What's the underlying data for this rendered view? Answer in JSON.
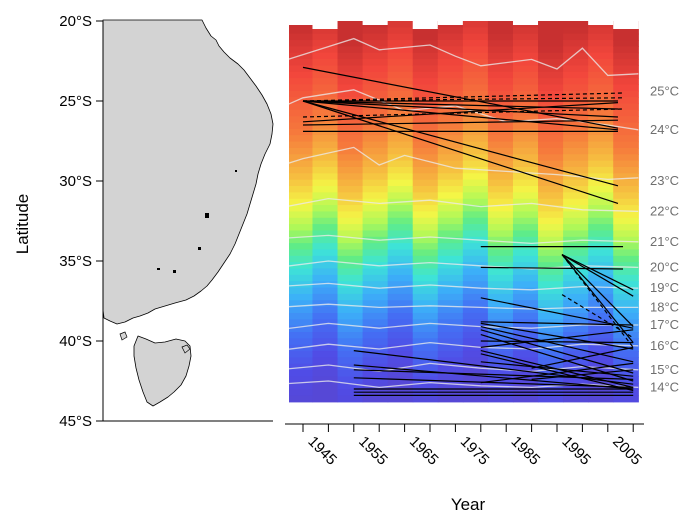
{
  "chart_data": {
    "type": "line",
    "ylabel": "Latitude",
    "xlabel": "Year",
    "y_ticks": [
      "20°S",
      "25°S",
      "30°S",
      "35°S",
      "40°S",
      "45°S"
    ],
    "y_tick_values": [
      20,
      25,
      30,
      35,
      40,
      45
    ],
    "ylim": [
      20,
      45
    ],
    "x_ticks": [
      "1945",
      "1955",
      "1965",
      "1975",
      "1985",
      "1995",
      "2005"
    ],
    "x_tick_values": [
      1945,
      1955,
      1965,
      1975,
      1985,
      1995,
      2005
    ],
    "xlim": [
      1940,
      2011
    ],
    "heatmap_extent": {
      "year_start": 1937,
      "year_end": 2011,
      "lat_top": 20.0,
      "lat_bottom": 43.8
    },
    "color_scale": "temperature: blue (cool, south) to red (warm, north)",
    "isotherms": [
      {
        "label": "25°C",
        "label_lat": 24.4,
        "points": [
          [
            1940,
            22.6
          ],
          [
            1950,
            21.6
          ],
          [
            1955,
            21.1
          ],
          [
            1960,
            21.8
          ],
          [
            1970,
            21.5
          ],
          [
            1975,
            22.2
          ],
          [
            1980,
            22.8
          ],
          [
            1990,
            22.4
          ],
          [
            1995,
            23.0
          ],
          [
            2000,
            21.7
          ],
          [
            2005,
            23.4
          ],
          [
            2011,
            23.3
          ]
        ]
      },
      {
        "label": "24°C",
        "label_lat": 26.8,
        "points": [
          [
            1940,
            25.5
          ],
          [
            1945,
            24.8
          ],
          [
            1955,
            24.3
          ],
          [
            1965,
            25.6
          ],
          [
            1975,
            25.3
          ],
          [
            1985,
            26.3
          ],
          [
            1995,
            26.1
          ],
          [
            2005,
            26.5
          ],
          [
            2011,
            26.8
          ]
        ]
      },
      {
        "label": "23°C",
        "label_lat": 30.0,
        "points": [
          [
            1940,
            29.1
          ],
          [
            1945,
            28.6
          ],
          [
            1955,
            27.9
          ],
          [
            1960,
            29.0
          ],
          [
            1965,
            28.4
          ],
          [
            1975,
            29.2
          ],
          [
            1985,
            29.4
          ],
          [
            1995,
            29.6
          ],
          [
            2005,
            29.9
          ],
          [
            2011,
            29.8
          ]
        ]
      },
      {
        "label": "22°C",
        "label_lat": 31.9,
        "points": [
          [
            1940,
            31.7
          ],
          [
            1950,
            31.1
          ],
          [
            1960,
            31.4
          ],
          [
            1970,
            31.2
          ],
          [
            1980,
            31.6
          ],
          [
            1990,
            31.4
          ],
          [
            2000,
            31.8
          ],
          [
            2011,
            31.9
          ]
        ]
      },
      {
        "label": "21°C",
        "label_lat": 33.8,
        "points": [
          [
            1940,
            33.6
          ],
          [
            1950,
            33.4
          ],
          [
            1960,
            33.7
          ],
          [
            1970,
            33.5
          ],
          [
            1980,
            33.7
          ],
          [
            1990,
            33.9
          ],
          [
            2000,
            33.7
          ],
          [
            2011,
            33.8
          ]
        ]
      },
      {
        "label": "20°C",
        "label_lat": 35.4,
        "points": [
          [
            1940,
            35.4
          ],
          [
            1950,
            35.0
          ],
          [
            1960,
            35.3
          ],
          [
            1970,
            35.1
          ],
          [
            1980,
            35.3
          ],
          [
            1990,
            35.5
          ],
          [
            2000,
            35.3
          ],
          [
            2011,
            35.4
          ]
        ]
      },
      {
        "label": "19°C",
        "label_lat": 36.7,
        "points": [
          [
            1940,
            36.6
          ],
          [
            1950,
            36.4
          ],
          [
            1960,
            36.7
          ],
          [
            1970,
            36.5
          ],
          [
            1980,
            36.7
          ],
          [
            1990,
            36.8
          ],
          [
            2000,
            36.6
          ],
          [
            2011,
            36.7
          ]
        ]
      },
      {
        "label": "18°C",
        "label_lat": 37.9,
        "points": [
          [
            1940,
            37.9
          ],
          [
            1950,
            37.7
          ],
          [
            1960,
            37.9
          ],
          [
            1970,
            37.8
          ],
          [
            1980,
            37.9
          ],
          [
            1990,
            38.0
          ],
          [
            2000,
            37.9
          ],
          [
            2011,
            37.9
          ]
        ]
      },
      {
        "label": "17°C",
        "label_lat": 39.0,
        "points": [
          [
            1940,
            39.3
          ],
          [
            1950,
            38.9
          ],
          [
            1960,
            39.2
          ],
          [
            1970,
            38.9
          ],
          [
            1980,
            39.1
          ],
          [
            1990,
            39.2
          ],
          [
            2000,
            39.0
          ],
          [
            2011,
            39.0
          ]
        ]
      },
      {
        "label": "16°C",
        "label_lat": 40.3,
        "points": [
          [
            1940,
            40.6
          ],
          [
            1950,
            40.2
          ],
          [
            1960,
            40.5
          ],
          [
            1970,
            40.1
          ],
          [
            1980,
            40.4
          ],
          [
            1990,
            40.5
          ],
          [
            2000,
            40.2
          ],
          [
            2011,
            40.3
          ]
        ]
      },
      {
        "label": "15°C",
        "label_lat": 41.8,
        "points": [
          [
            1940,
            41.8
          ],
          [
            1950,
            41.5
          ],
          [
            1960,
            41.9
          ],
          [
            1970,
            41.4
          ],
          [
            1980,
            41.7
          ],
          [
            1990,
            41.9
          ],
          [
            2000,
            41.6
          ],
          [
            2011,
            41.8
          ]
        ]
      },
      {
        "label": "14°C",
        "label_lat": 42.9,
        "points": [
          [
            1940,
            42.7
          ],
          [
            1950,
            42.5
          ],
          [
            1960,
            42.9
          ],
          [
            1970,
            42.6
          ],
          [
            1980,
            42.8
          ],
          [
            1990,
            42.9
          ],
          [
            2000,
            42.7
          ],
          [
            2011,
            42.9
          ]
        ]
      }
    ],
    "range_shifts_solid": [
      [
        [
          1945,
          22.9
        ],
        [
          2007,
          26.7
        ]
      ],
      [
        [
          1945,
          25.0
        ],
        [
          2007,
          25.0
        ]
      ],
      [
        [
          1945,
          25.0
        ],
        [
          2007,
          25.5
        ]
      ],
      [
        [
          1945,
          25.0
        ],
        [
          2007,
          26.0
        ]
      ],
      [
        [
          1945,
          25.0
        ],
        [
          2007,
          26.8
        ]
      ],
      [
        [
          1945,
          25.0
        ],
        [
          2007,
          30.3
        ]
      ],
      [
        [
          1945,
          25.0
        ],
        [
          2007,
          31.4
        ]
      ],
      [
        [
          1945,
          26.3
        ],
        [
          2007,
          25.1
        ]
      ],
      [
        [
          1945,
          26.5
        ],
        [
          2007,
          26.2
        ]
      ],
      [
        [
          1945,
          26.9
        ],
        [
          2007,
          26.9
        ]
      ],
      [
        [
          1980,
          34.1
        ],
        [
          2008,
          34.1
        ]
      ],
      [
        [
          1980,
          35.4
        ],
        [
          2008,
          35.5
        ]
      ],
      [
        [
          1980,
          37.3
        ],
        [
          2010,
          39.2
        ]
      ],
      [
        [
          1980,
          38.8
        ],
        [
          2010,
          39.0
        ]
      ],
      [
        [
          1980,
          38.9
        ],
        [
          2010,
          40.5
        ]
      ],
      [
        [
          1980,
          39.1
        ],
        [
          2010,
          41.3
        ]
      ],
      [
        [
          1980,
          39.3
        ],
        [
          2010,
          42.0
        ]
      ],
      [
        [
          1980,
          39.6
        ],
        [
          2010,
          42.5
        ]
      ],
      [
        [
          1980,
          40.0
        ],
        [
          2010,
          40.1
        ]
      ],
      [
        [
          1980,
          40.4
        ],
        [
          2010,
          39.3
        ]
      ],
      [
        [
          1980,
          40.6
        ],
        [
          2010,
          42.9
        ]
      ],
      [
        [
          1980,
          40.8
        ],
        [
          2010,
          43.1
        ]
      ],
      [
        [
          1980,
          41.3
        ],
        [
          2010,
          42.2
        ]
      ],
      [
        [
          1980,
          42.6
        ],
        [
          2010,
          41.4
        ]
      ],
      [
        [
          1996,
          34.6
        ],
        [
          2010,
          36.8
        ]
      ],
      [
        [
          1996,
          34.6
        ],
        [
          2010,
          37.2
        ]
      ],
      [
        [
          1996,
          34.6
        ],
        [
          2010,
          39.1
        ]
      ],
      [
        [
          1996,
          34.6
        ],
        [
          2010,
          40.1
        ]
      ],
      [
        [
          1955,
          40.6
        ],
        [
          2010,
          42.7
        ]
      ],
      [
        [
          1955,
          41.5
        ],
        [
          2010,
          43.0
        ]
      ],
      [
        [
          1955,
          41.8
        ],
        [
          2010,
          42.4
        ]
      ],
      [
        [
          1955,
          42.3
        ],
        [
          2010,
          42.9
        ]
      ],
      [
        [
          1955,
          43.0
        ],
        [
          2010,
          43.0
        ]
      ],
      [
        [
          1955,
          43.2
        ],
        [
          2010,
          43.2
        ]
      ],
      [
        [
          1955,
          43.4
        ],
        [
          2010,
          43.4
        ]
      ],
      [
        [
          1990,
          41.7
        ],
        [
          2010,
          40.4
        ]
      ],
      [
        [
          1990,
          42.4
        ],
        [
          2010,
          41.8
        ]
      ]
    ],
    "range_shifts_dashed": [
      [
        [
          1945,
          25.0
        ],
        [
          2008,
          24.5
        ]
      ],
      [
        [
          1945,
          25.0
        ],
        [
          2008,
          24.8
        ]
      ],
      [
        [
          1945,
          26.0
        ],
        [
          2008,
          25.5
        ]
      ],
      [
        [
          1996,
          37.1
        ],
        [
          2010,
          39.8
        ]
      ],
      [
        [
          1996,
          34.6
        ],
        [
          2010,
          40.4
        ]
      ]
    ],
    "map": {
      "xlabel": "",
      "ylabel": "Latitude",
      "land_color": "#d3d3d3",
      "outline_color": "#000000"
    }
  }
}
